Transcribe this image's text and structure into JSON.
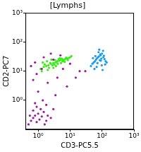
{
  "chart_data": {
    "type": "scatter",
    "title": "[Lymphs]",
    "x_label": "CD3-PC5.5",
    "y_label": "CD2-PC7",
    "log": true,
    "grid": false,
    "xlim": [
      0.4,
      1000
    ],
    "ylim": [
      0.1,
      1000
    ],
    "xticks": [
      {
        "value": 1,
        "label": "10⁰"
      },
      {
        "value": 10,
        "label": "10¹"
      },
      {
        "value": 100,
        "label": "10²"
      },
      {
        "value": 1000,
        "label": "10³"
      }
    ],
    "yticks": [
      {
        "value": 1,
        "label": "10⁰"
      },
      {
        "value": 10,
        "label": "10¹"
      },
      {
        "value": 100,
        "label": "10²"
      },
      {
        "value": 1000,
        "label": "10³"
      }
    ],
    "series": [
      {
        "color": "#9a1a9a",
        "x": [
          0.5,
          0.6,
          0.7,
          0.8,
          0.9,
          1,
          1.1,
          1.3,
          1.5,
          1.8,
          2,
          2.5,
          0.7,
          0.9,
          1.2,
          1.6,
          0.55,
          0.8,
          1.4,
          3,
          0.6,
          0.8,
          1.5,
          3,
          6,
          10,
          20,
          1,
          2,
          4,
          0.9,
          1.3,
          2.5,
          5,
          15,
          0.7,
          3.5,
          8,
          30,
          1.8
        ],
        "values": [
          0.15,
          0.2,
          0.25,
          0.3,
          0.18,
          0.35,
          0.22,
          0.28,
          0.4,
          0.2,
          0.3,
          0.25,
          0.45,
          0.6,
          0.5,
          0.15,
          0.3,
          0.8,
          1,
          0.5,
          15,
          20,
          30,
          25,
          12,
          18,
          10,
          2,
          4,
          6,
          8,
          12,
          40,
          35,
          6,
          5,
          1.5,
          3,
          10,
          0.7
        ]
      },
      {
        "color": "#33ee11",
        "x": [
          1.2,
          1.5,
          1.8,
          2.1,
          2.5,
          3,
          3.5,
          4,
          4.5,
          5,
          6,
          7,
          8,
          9,
          10,
          1.4,
          1.9,
          2.6,
          3.2,
          3.8,
          4.4,
          5.2,
          6.3,
          7.5,
          2.2,
          2.8,
          3.4,
          4.1,
          5.5,
          6.8,
          1.6,
          2.4,
          3.6,
          4.8,
          5.8,
          8.5,
          11,
          1.3,
          2.0,
          3.0
        ],
        "values": [
          12,
          14,
          15,
          16,
          18,
          19,
          20,
          22,
          23,
          24,
          25,
          26,
          27,
          28,
          30,
          20,
          22,
          25,
          17,
          21,
          26,
          19,
          23,
          29,
          13,
          16,
          24,
          18,
          27,
          21,
          17,
          19,
          15,
          28,
          22,
          24,
          33,
          10,
          11,
          13
        ]
      },
      {
        "color": "#1e9be8",
        "x": [
          45,
          50,
          55,
          60,
          65,
          70,
          75,
          80,
          85,
          90,
          95,
          100,
          110,
          120,
          130,
          140,
          58,
          68,
          78,
          88,
          98,
          108,
          62,
          72,
          82,
          92,
          104,
          115,
          52,
          125
        ],
        "values": [
          15,
          18,
          20,
          22,
          25,
          28,
          30,
          32,
          24,
          35,
          27,
          40,
          30,
          26,
          22,
          20,
          12,
          14,
          45,
          38,
          16,
          50,
          33,
          19,
          55,
          23,
          11,
          34,
          28,
          17
        ]
      }
    ]
  }
}
